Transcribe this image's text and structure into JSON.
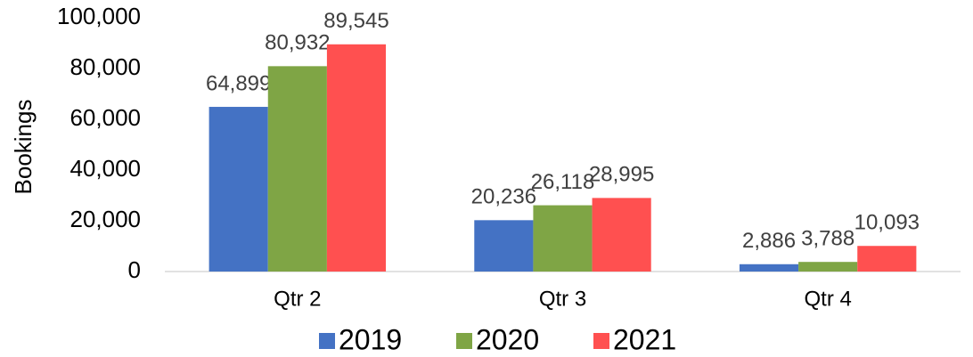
{
  "chart_data": {
    "type": "bar",
    "y_label": "Bookings",
    "categories": [
      "Qtr 2",
      "Qtr 3",
      "Qtr 4"
    ],
    "series": [
      {
        "name": "2019",
        "color": "#4472c4",
        "values": [
          64899,
          20236,
          2886
        ],
        "value_labels": [
          "64,899",
          "20,236",
          "2,886"
        ]
      },
      {
        "name": "2020",
        "color": "#7fa545",
        "values": [
          80932,
          26118,
          3788
        ],
        "value_labels": [
          "80,932",
          "26,118",
          "3,788"
        ]
      },
      {
        "name": "2021",
        "color": "#ff5050",
        "values": [
          89545,
          28995,
          10093
        ],
        "value_labels": [
          "89,545",
          "28,995",
          "10,093"
        ]
      }
    ],
    "ylim": [
      0,
      100000
    ],
    "yticks": [
      0,
      {
        "value": 20000,
        "label": "20,000"
      },
      {
        "value": 40000,
        "label": "40,000"
      },
      {
        "value": 60000,
        "label": "60,000"
      },
      {
        "value": 80000,
        "label": "80,000"
      },
      {
        "value": 100000,
        "label": "100,000"
      }
    ],
    "grid": false,
    "legend": "bottom"
  }
}
